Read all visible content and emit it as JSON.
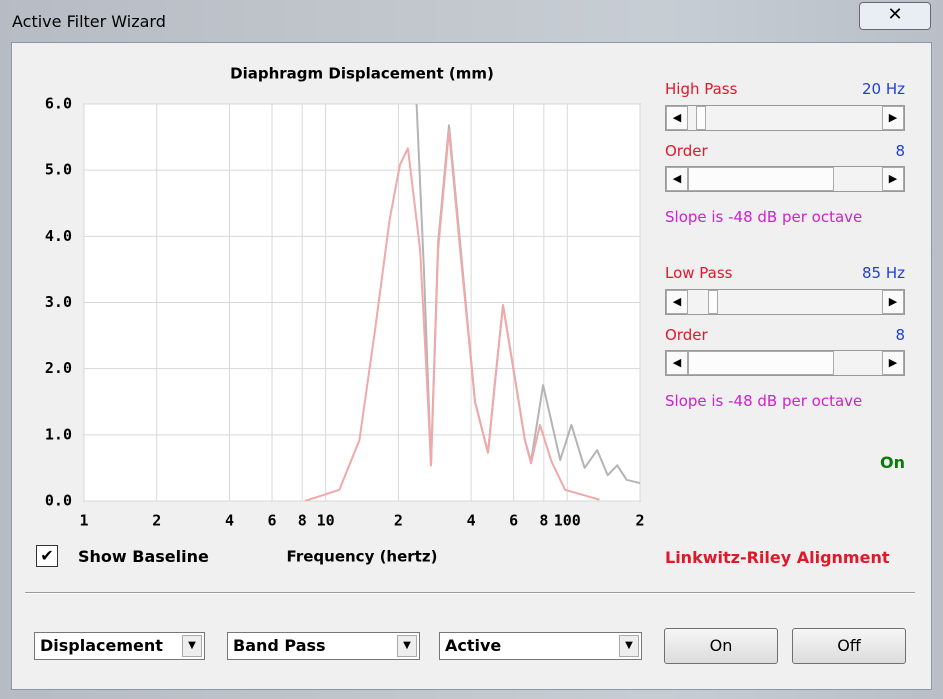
{
  "window": {
    "title": "Active Filter Wizard"
  },
  "chart_data": {
    "type": "line",
    "title": "Diaphragm Displacement (mm)",
    "x_label": "Frequency (hertz)",
    "log_x": true,
    "grid": true,
    "xlim": [
      1,
      200
    ],
    "ylim": [
      0,
      6
    ],
    "xticks": [
      1,
      2,
      4,
      6,
      8,
      10,
      {
        "value": 20,
        "label": "2"
      },
      {
        "value": 40,
        "label": "4"
      },
      {
        "value": 60,
        "label": "6"
      },
      {
        "value": 80,
        "label": "8"
      },
      100,
      {
        "value": 200,
        "label": "2"
      }
    ],
    "yticks": [
      {
        "value": 0,
        "label": "0.0"
      },
      {
        "value": 1,
        "label": "1.0"
      },
      {
        "value": 2,
        "label": "2.0"
      },
      {
        "value": 3,
        "label": "3.0"
      },
      {
        "value": 4,
        "label": "4.0"
      },
      {
        "value": 5,
        "label": "5.0"
      },
      {
        "value": 6,
        "label": "6.0"
      }
    ],
    "series": [
      {
        "color": "#b4b4b4",
        "x": [
          23.8,
          25.5,
          27.3,
          29.2,
          32.4,
          36,
          41.5,
          47,
          50.3,
          54.2,
          60.9,
          66.8,
          70.8,
          79.4,
          93.5,
          104,
          118,
          133,
          147,
          161,
          176,
          200
        ],
        "values": [
          6.0,
          3.5,
          0.54,
          3.9,
          5.68,
          3.9,
          1.5,
          0.73,
          1.83,
          2.96,
          1.83,
          0.92,
          0.6,
          1.75,
          0.62,
          1.15,
          0.5,
          0.77,
          0.39,
          0.54,
          0.32,
          0.27
        ]
      },
      {
        "color": "#f2a8a8",
        "x": [
          8.2,
          11.4,
          13.8,
          16,
          18.4,
          20.3,
          21.9,
          24.6,
          26.5,
          27.3,
          29.2,
          32.4,
          36,
          41.5,
          47,
          50.3,
          54.2,
          60.9,
          66.8,
          70.8,
          77.1,
          86,
          98,
          136
        ],
        "values": [
          0.0,
          0.17,
          0.92,
          2.58,
          4.25,
          5.08,
          5.33,
          3.8,
          1.53,
          0.54,
          3.8,
          5.6,
          3.8,
          1.5,
          0.73,
          1.83,
          2.96,
          1.83,
          0.92,
          0.57,
          1.15,
          0.6,
          0.17,
          0.02
        ]
      }
    ]
  },
  "filters": {
    "high_pass": {
      "label": "High Pass",
      "value": "20 Hz",
      "order_label": "Order",
      "order": "8",
      "slope": "Slope is -48 dB per octave"
    },
    "low_pass": {
      "label": "Low Pass",
      "value": "85 Hz",
      "order_label": "Order",
      "order": "8",
      "slope": "Slope is -48 dB per octave"
    },
    "status": "On",
    "alignment": "Linkwitz-Riley Alignment"
  },
  "controls": {
    "show_baseline": "Show Baseline",
    "dropdowns": [
      "Displacement",
      "Band Pass",
      "Active"
    ],
    "buttons": [
      "On",
      "Off"
    ]
  }
}
